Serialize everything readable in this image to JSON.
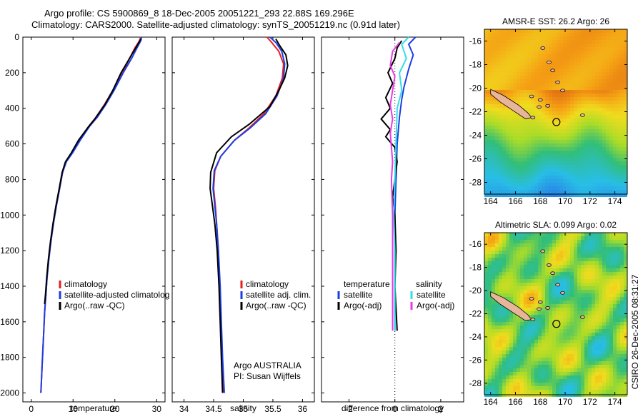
{
  "header": {
    "title_line1": "Argo profile: CS 5900869_8 18-Dec-2005 20051221_293 22.88S 169.296E",
    "title_line2": "Climatology: CARS2000. Satellite-adjusted climatology: synTS_20051219.nc (0.91d later)"
  },
  "credit": "CSIRO 26-Dec-2005 08:31:27",
  "colors": {
    "red": "#e8201b",
    "blue": "#1a3ee6",
    "black": "#000000",
    "cyan": "#33dde8",
    "magenta": "#e83ae8"
  },
  "chart_data": [
    {
      "type": "line",
      "panel": "temperature",
      "xlabel": "temperature",
      "ylabel": "",
      "xlim": [
        -2,
        32
      ],
      "ylim": [
        2050,
        0
      ],
      "y_inverted": true,
      "xticks": [
        0,
        10,
        20,
        30
      ],
      "yticks": [
        0,
        200,
        400,
        600,
        800,
        1000,
        1200,
        1400,
        1600,
        1800,
        2000
      ],
      "legend": [
        "climatology",
        "satellite-adjusted climatolog",
        "Argo(..raw -QC)"
      ],
      "series": [
        {
          "name": "climatology",
          "color": "red",
          "points": [
            [
              26.2,
              0
            ],
            [
              25.9,
              20
            ],
            [
              24.8,
              60
            ],
            [
              23.5,
              120
            ],
            [
              21.8,
              200
            ],
            [
              19.5,
              300
            ],
            [
              17.5,
              380
            ],
            [
              15.5,
              450
            ],
            [
              13.8,
              500
            ],
            [
              11.5,
              580
            ],
            [
              9.8,
              650
            ],
            [
              8.3,
              700
            ],
            [
              7.5,
              760
            ],
            [
              6.8,
              850
            ],
            [
              6.0,
              950
            ],
            [
              5.3,
              1050
            ],
            [
              4.7,
              1150
            ],
            [
              4.2,
              1250
            ],
            [
              3.8,
              1350
            ],
            [
              3.5,
              1450
            ],
            [
              3.2,
              1550
            ],
            [
              3.0,
              1650
            ],
            [
              2.8,
              1750
            ],
            [
              2.6,
              1850
            ],
            [
              2.4,
              1950
            ],
            [
              2.3,
              2000
            ]
          ]
        },
        {
          "name": "satellite-adjusted climatolog",
          "color": "blue",
          "points": [
            [
              26.4,
              0
            ],
            [
              26.2,
              20
            ],
            [
              25.3,
              60
            ],
            [
              24.0,
              120
            ],
            [
              22.0,
              200
            ],
            [
              19.8,
              300
            ],
            [
              17.8,
              380
            ],
            [
              15.8,
              450
            ],
            [
              14.0,
              500
            ],
            [
              11.7,
              580
            ],
            [
              9.9,
              650
            ],
            [
              8.4,
              700
            ],
            [
              7.5,
              760
            ],
            [
              6.8,
              850
            ],
            [
              6.0,
              950
            ],
            [
              5.3,
              1050
            ],
            [
              4.7,
              1150
            ],
            [
              4.2,
              1250
            ],
            [
              3.8,
              1350
            ],
            [
              3.5,
              1450
            ],
            [
              3.2,
              1550
            ],
            [
              3.0,
              1650
            ],
            [
              2.8,
              1750
            ],
            [
              2.6,
              1850
            ],
            [
              2.4,
              1950
            ],
            [
              2.3,
              2000
            ]
          ]
        },
        {
          "name": "Argo(..raw -QC)",
          "color": "black",
          "points": [
            [
              26.2,
              10
            ],
            [
              25.5,
              40
            ],
            [
              24.5,
              80
            ],
            [
              23.5,
              120
            ],
            [
              21.5,
              200
            ],
            [
              19.5,
              300
            ],
            [
              17.6,
              380
            ],
            [
              15.2,
              460
            ],
            [
              13.5,
              510
            ],
            [
              11.3,
              580
            ],
            [
              9.6,
              650
            ],
            [
              8.2,
              700
            ],
            [
              7.4,
              760
            ],
            [
              6.7,
              850
            ],
            [
              5.9,
              950
            ],
            [
              5.2,
              1050
            ],
            [
              4.6,
              1150
            ],
            [
              4.1,
              1250
            ],
            [
              3.7,
              1350
            ],
            [
              3.4,
              1450
            ],
            [
              3.2,
              1500
            ]
          ]
        }
      ]
    },
    {
      "type": "line",
      "panel": "salinity",
      "xlabel": "salinity",
      "ylabel": "",
      "xlim": [
        33.8,
        36.2
      ],
      "ylim": [
        2050,
        0
      ],
      "y_inverted": true,
      "xticks": [
        34,
        34.5,
        35,
        35.5,
        36
      ],
      "legend": [
        "climatology",
        "satellite adj. clim.",
        "Argo(..raw -QC)"
      ],
      "annotations": [
        "Argo AUSTRALIA",
        "PI: Susan Wijffels"
      ],
      "series": [
        {
          "name": "climatology",
          "color": "red",
          "points": [
            [
              35.4,
              0
            ],
            [
              35.48,
              30
            ],
            [
              35.6,
              80
            ],
            [
              35.68,
              150
            ],
            [
              35.66,
              230
            ],
            [
              35.55,
              330
            ],
            [
              35.35,
              430
            ],
            [
              35.1,
              510
            ],
            [
              34.85,
              580
            ],
            [
              34.62,
              670
            ],
            [
              34.52,
              750
            ],
            [
              34.5,
              850
            ],
            [
              34.53,
              950
            ],
            [
              34.55,
              1050
            ],
            [
              34.58,
              1200
            ],
            [
              34.6,
              1400
            ],
            [
              34.62,
              1600
            ],
            [
              34.64,
              1800
            ],
            [
              34.66,
              2000
            ]
          ]
        },
        {
          "name": "satellite adj. clim.",
          "color": "blue",
          "points": [
            [
              35.45,
              0
            ],
            [
              35.55,
              30
            ],
            [
              35.65,
              80
            ],
            [
              35.7,
              150
            ],
            [
              35.68,
              230
            ],
            [
              35.57,
              330
            ],
            [
              35.38,
              430
            ],
            [
              35.12,
              510
            ],
            [
              34.85,
              580
            ],
            [
              34.62,
              670
            ],
            [
              34.51,
              750
            ],
            [
              34.49,
              850
            ],
            [
              34.52,
              950
            ],
            [
              34.55,
              1050
            ],
            [
              34.58,
              1200
            ],
            [
              34.61,
              1400
            ],
            [
              34.63,
              1600
            ],
            [
              34.65,
              1800
            ],
            [
              34.68,
              2000
            ]
          ]
        },
        {
          "name": "Argo(..raw -QC)",
          "color": "black",
          "points": [
            [
              35.55,
              10
            ],
            [
              35.6,
              40
            ],
            [
              35.72,
              100
            ],
            [
              35.75,
              160
            ],
            [
              35.7,
              230
            ],
            [
              35.6,
              300
            ],
            [
              35.45,
              390
            ],
            [
              35.1,
              490
            ],
            [
              34.8,
              560
            ],
            [
              34.55,
              650
            ],
            [
              34.45,
              760
            ],
            [
              34.44,
              850
            ],
            [
              34.48,
              950
            ],
            [
              34.52,
              1050
            ],
            [
              34.56,
              1200
            ],
            [
              34.59,
              1400
            ],
            [
              34.61,
              1600
            ],
            [
              34.63,
              1800
            ],
            [
              34.65,
              2000
            ]
          ]
        }
      ]
    },
    {
      "type": "line",
      "panel": "difference",
      "xlabel": "difference from climatology",
      "ylabel": "",
      "xlim": [
        -3.2,
        3.0
      ],
      "ylim": [
        2050,
        0
      ],
      "y_inverted": true,
      "xticks": [
        -2,
        0,
        2
      ],
      "legend_groups": [
        {
          "heading": "temperature",
          "items": [
            "satellite",
            "Argo(-adj)"
          ]
        },
        {
          "heading": "salinity",
          "items": [
            "satellite",
            "Argo(-adj)"
          ]
        }
      ],
      "series": [
        {
          "name": "temperature satellite",
          "color": "blue",
          "points": [
            [
              0.9,
              0
            ],
            [
              0.6,
              40
            ],
            [
              0.8,
              100
            ],
            [
              0.6,
              180
            ],
            [
              0.4,
              280
            ],
            [
              0.3,
              350
            ],
            [
              0.2,
              450
            ],
            [
              0.1,
              600
            ],
            [
              0.05,
              800
            ],
            [
              0.0,
              1000
            ],
            [
              0.0,
              1500
            ],
            [
              0.0,
              1650
            ]
          ]
        },
        {
          "name": "temperature Argo(-adj)",
          "color": "black",
          "points": [
            [
              0.3,
              20
            ],
            [
              0.1,
              60
            ],
            [
              0.0,
              120
            ],
            [
              -0.3,
              200
            ],
            [
              -0.1,
              260
            ],
            [
              -0.4,
              340
            ],
            [
              -0.2,
              400
            ],
            [
              -0.6,
              460
            ],
            [
              -0.2,
              520
            ],
            [
              -0.4,
              560
            ],
            [
              0.0,
              620
            ],
            [
              0.1,
              700
            ],
            [
              0.0,
              800
            ],
            [
              -0.1,
              900
            ],
            [
              0.0,
              1000
            ],
            [
              0.05,
              1200
            ],
            [
              0.0,
              1400
            ],
            [
              0.1,
              1650
            ]
          ]
        },
        {
          "name": "salinity satellite",
          "color": "cyan",
          "points": [
            [
              0.6,
              0
            ],
            [
              0.3,
              40
            ],
            [
              0.5,
              120
            ],
            [
              0.2,
              200
            ],
            [
              0.3,
              300
            ],
            [
              0.1,
              400
            ],
            [
              0.05,
              600
            ],
            [
              0.0,
              800
            ],
            [
              -0.05,
              1000
            ],
            [
              0.0,
              1200
            ],
            [
              0.0,
              1500
            ],
            [
              0.0,
              1650
            ]
          ]
        },
        {
          "name": "salinity Argo(-adj)",
          "color": "magenta",
          "points": [
            [
              0.2,
              30
            ],
            [
              -0.1,
              80
            ],
            [
              -0.2,
              160
            ],
            [
              0.0,
              220
            ],
            [
              -0.1,
              300
            ],
            [
              -0.2,
              380
            ],
            [
              -0.1,
              460
            ],
            [
              -0.2,
              540
            ],
            [
              -0.15,
              620
            ],
            [
              -0.1,
              700
            ],
            [
              -0.15,
              800
            ],
            [
              -0.1,
              1000
            ],
            [
              -0.1,
              1200
            ],
            [
              -0.1,
              1400
            ],
            [
              -0.1,
              1650
            ]
          ]
        }
      ]
    },
    {
      "type": "heatmap",
      "panel": "sst_map",
      "title": "AMSR-E SST: 26.2 Argo: 26",
      "xticks": [
        "164",
        "166",
        "168",
        "170",
        "172",
        "174"
      ],
      "yticks": [
        "-16",
        "-18",
        "-20",
        "-22",
        "-24",
        "-26",
        "-28"
      ],
      "xlim": [
        163.5,
        175
      ],
      "ylim": [
        -29,
        -15
      ],
      "argo_position": [
        169.296,
        -22.88
      ]
    },
    {
      "type": "heatmap",
      "panel": "sla_map",
      "title": "Altimetric SLA: 0.099 Argo: 0.02",
      "xticks": [
        "164",
        "166",
        "168",
        "170",
        "172",
        "174"
      ],
      "yticks": [
        "-16",
        "-18",
        "-20",
        "-22",
        "-24",
        "-26",
        "-28"
      ],
      "xlim": [
        163.5,
        175
      ],
      "ylim": [
        -29,
        -15
      ],
      "argo_position": [
        169.296,
        -22.88
      ]
    }
  ]
}
